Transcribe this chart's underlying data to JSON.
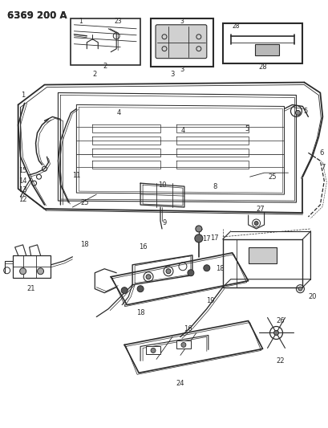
{
  "title": "6369 200 A",
  "bg_color": "#ffffff",
  "line_color": "#2a2a2a",
  "title_fontsize": 8.5,
  "label_fontsize": 6.0
}
